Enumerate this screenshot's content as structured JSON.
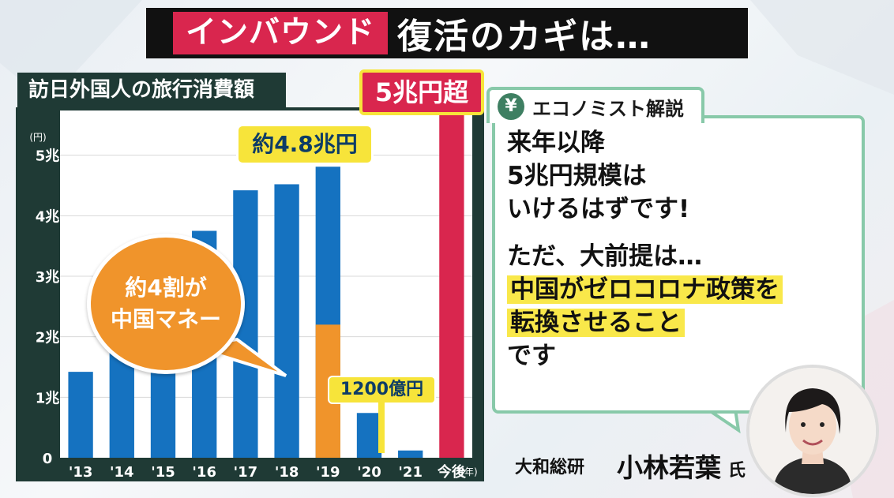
{
  "headline": {
    "tag": "インバウンド",
    "text": "復活のカギは…"
  },
  "chart_data": {
    "type": "bar",
    "title": "訪日外国人の旅行消費額",
    "ylabel_unit": "(円)",
    "xlabel_unit": "(年)",
    "categories": [
      "'13",
      "'14",
      "'15",
      "'16",
      "'17",
      "'18",
      "'19",
      "'20",
      "'21",
      "今後"
    ],
    "values": [
      1.42,
      2.03,
      3.48,
      3.75,
      4.42,
      4.52,
      4.81,
      0.74,
      0.12,
      5.4
    ],
    "china_share_2019": 2.2,
    "ylim": [
      0,
      5.4
    ],
    "yticks": [
      0,
      1,
      2,
      3,
      4,
      5
    ],
    "ytick_labels": [
      "0",
      "1兆",
      "2兆",
      "3兆",
      "4兆",
      "5兆"
    ],
    "colors": {
      "bar": "#1572c0",
      "china": "#f0942b",
      "future": "#d9264e",
      "panel": "#1f3a35"
    },
    "annotations": {
      "future": "5兆円超",
      "y2019": "約4.8兆円",
      "y2021": "1200億円",
      "china_bubble": [
        "約4割が",
        "中国マネー"
      ]
    }
  },
  "economist": {
    "tab_icon": "¥",
    "tab_label": "エコノミスト解説",
    "lines1": [
      "来年以降",
      "5兆円規模は",
      "いけるはずです!"
    ],
    "lines2_plain": "ただ、大前提は…",
    "lines2_highlight": [
      "中国がゼロコロナ政策を",
      "転換させること"
    ],
    "lines2_end": "です"
  },
  "speaker": {
    "org": "大和総研",
    "name": "小林若葉",
    "suffix": "氏"
  }
}
